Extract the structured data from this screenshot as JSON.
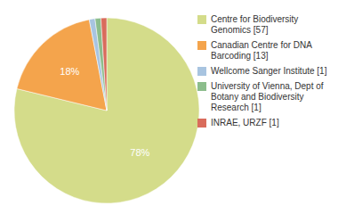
{
  "chart_data": {
    "type": "pie",
    "categories": [
      "Centre for Biodiversity\nGenomics [57]",
      "Canadian Centre for DNA\nBarcoding [13]",
      "Wellcome Sanger Institute [1]",
      "University of Vienna, Dept of\nBotany and Biodiversity\nResearch [1]",
      "INRAE, URZF [1]"
    ],
    "values": [
      78,
      18,
      1,
      1,
      1
    ],
    "value_labels": [
      "78%",
      "18%",
      null,
      null,
      null
    ],
    "colors": [
      "#d4dc8a",
      "#f4a44c",
      "#a8c4e0",
      "#8cbd8c",
      "#d96c5c"
    ],
    "legend": "right"
  }
}
